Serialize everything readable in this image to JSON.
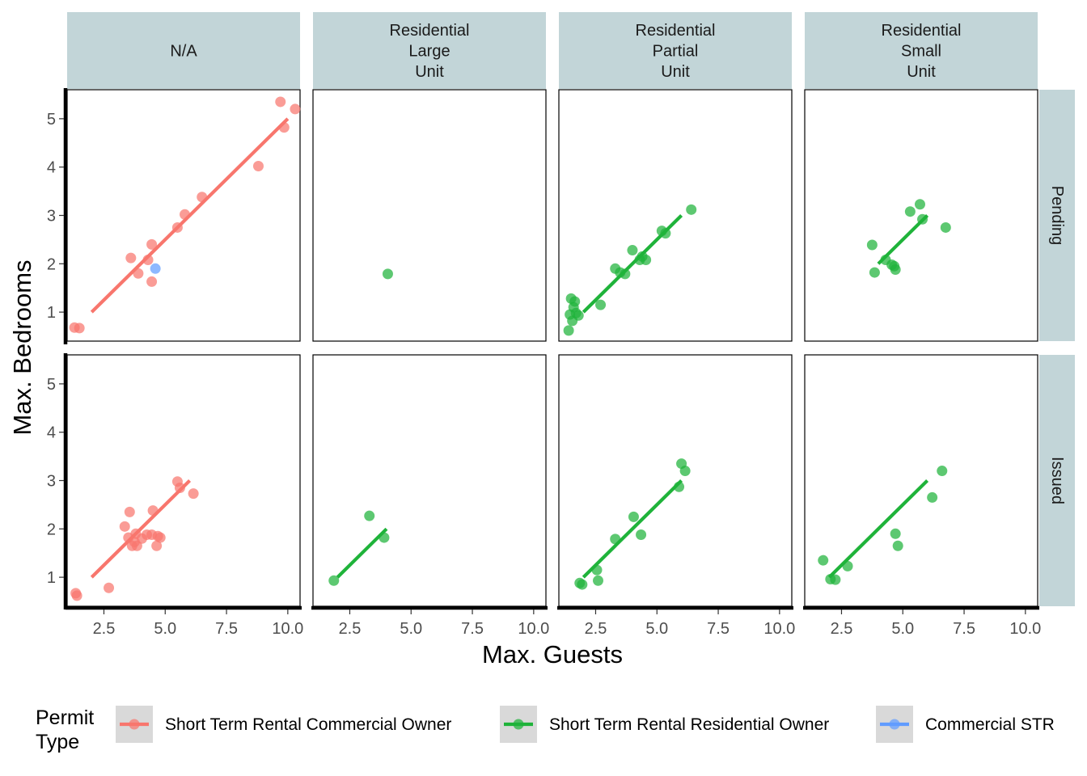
{
  "chart_data": {
    "type": "scatter",
    "xlabel": "Max. Guests",
    "ylabel": "Max. Bedrooms",
    "xlim": [
      1,
      10.5
    ],
    "ylim": [
      0.4,
      5.6
    ],
    "x_ticks": [
      2.5,
      5.0,
      7.5,
      10.0
    ],
    "x_tick_labels": [
      "2.5",
      "5.0",
      "7.5",
      "10.0"
    ],
    "y_ticks": [
      1,
      2,
      3,
      4,
      5
    ],
    "y_tick_labels": [
      "1",
      "2",
      "3",
      "4",
      "5"
    ],
    "columns": [
      {
        "lines": [
          "N/A"
        ]
      },
      {
        "lines": [
          "Residential",
          "Large",
          "Unit"
        ]
      },
      {
        "lines": [
          "Residential",
          "Partial",
          "Unit"
        ]
      },
      {
        "lines": [
          "Residential",
          "Small",
          "Unit"
        ]
      }
    ],
    "rows": [
      "Pending",
      "Issued"
    ],
    "legend": {
      "title_lines": [
        "Permit",
        "Type"
      ],
      "position": "bottom",
      "entries": [
        {
          "label": "Short Term Rental Commercial Owner",
          "color": "#F8766D"
        },
        {
          "label": "Short Term Rental Residential Owner",
          "color": "#1FB33A"
        },
        {
          "label": "Commercial STR",
          "color": "#619CFF"
        }
      ]
    },
    "panels": [
      {
        "row": 0,
        "col": 0,
        "points": [
          {
            "x": 1.3,
            "y": 0.68,
            "g": 0
          },
          {
            "x": 1.5,
            "y": 0.67,
            "g": 0
          },
          {
            "x": 3.6,
            "y": 2.12,
            "g": 0
          },
          {
            "x": 3.9,
            "y": 1.8,
            "g": 0
          },
          {
            "x": 4.3,
            "y": 2.08,
            "g": 0
          },
          {
            "x": 4.45,
            "y": 2.4,
            "g": 0
          },
          {
            "x": 4.45,
            "y": 1.63,
            "g": 0
          },
          {
            "x": 4.6,
            "y": 1.9,
            "g": 2
          },
          {
            "x": 5.5,
            "y": 2.75,
            "g": 0
          },
          {
            "x": 5.8,
            "y": 3.02,
            "g": 0
          },
          {
            "x": 6.5,
            "y": 3.38,
            "g": 0
          },
          {
            "x": 8.8,
            "y": 4.02,
            "g": 0
          },
          {
            "x": 9.7,
            "y": 5.35,
            "g": 0
          },
          {
            "x": 9.85,
            "y": 4.82,
            "g": 0
          },
          {
            "x": 10.3,
            "y": 5.2,
            "g": 0
          }
        ],
        "fits": [
          {
            "g": 0,
            "x1": 2.0,
            "y1": 1.0,
            "x2": 10.0,
            "y2": 5.0
          }
        ]
      },
      {
        "row": 0,
        "col": 1,
        "points": [
          {
            "x": 4.05,
            "y": 1.79,
            "g": 1
          }
        ],
        "fits": []
      },
      {
        "row": 0,
        "col": 2,
        "points": [
          {
            "x": 1.4,
            "y": 0.62,
            "g": 1
          },
          {
            "x": 1.45,
            "y": 0.95,
            "g": 1
          },
          {
            "x": 1.5,
            "y": 1.28,
            "g": 1
          },
          {
            "x": 1.55,
            "y": 0.82,
            "g": 1
          },
          {
            "x": 1.6,
            "y": 1.1,
            "g": 1
          },
          {
            "x": 1.65,
            "y": 1.22,
            "g": 1
          },
          {
            "x": 1.7,
            "y": 0.98,
            "g": 1
          },
          {
            "x": 1.8,
            "y": 0.93,
            "g": 1
          },
          {
            "x": 2.7,
            "y": 1.15,
            "g": 1
          },
          {
            "x": 3.3,
            "y": 1.9,
            "g": 1
          },
          {
            "x": 3.5,
            "y": 1.82,
            "g": 1
          },
          {
            "x": 3.7,
            "y": 1.79,
            "g": 1
          },
          {
            "x": 4.0,
            "y": 2.28,
            "g": 1
          },
          {
            "x": 4.3,
            "y": 2.08,
            "g": 1
          },
          {
            "x": 4.4,
            "y": 2.15,
            "g": 1
          },
          {
            "x": 4.55,
            "y": 2.08,
            "g": 1
          },
          {
            "x": 5.2,
            "y": 2.68,
            "g": 1
          },
          {
            "x": 5.35,
            "y": 2.63,
            "g": 1
          },
          {
            "x": 6.4,
            "y": 3.12,
            "g": 1
          }
        ],
        "fits": [
          {
            "g": 1,
            "x1": 2.0,
            "y1": 1.0,
            "x2": 6.0,
            "y2": 3.0
          }
        ]
      },
      {
        "row": 0,
        "col": 3,
        "points": [
          {
            "x": 3.75,
            "y": 2.39,
            "g": 1
          },
          {
            "x": 3.85,
            "y": 1.82,
            "g": 1
          },
          {
            "x": 4.3,
            "y": 2.08,
            "g": 1
          },
          {
            "x": 4.55,
            "y": 1.98,
            "g": 1
          },
          {
            "x": 4.65,
            "y": 1.95,
            "g": 1
          },
          {
            "x": 4.7,
            "y": 1.88,
            "g": 1
          },
          {
            "x": 5.3,
            "y": 3.08,
            "g": 1
          },
          {
            "x": 5.7,
            "y": 3.23,
            "g": 1
          },
          {
            "x": 5.8,
            "y": 2.92,
            "g": 1
          },
          {
            "x": 6.75,
            "y": 2.75,
            "g": 1
          }
        ],
        "fits": [
          {
            "g": 1,
            "x1": 4.0,
            "y1": 2.0,
            "x2": 6.0,
            "y2": 3.0
          }
        ]
      },
      {
        "row": 1,
        "col": 0,
        "points": [
          {
            "x": 1.35,
            "y": 0.67,
            "g": 0
          },
          {
            "x": 1.4,
            "y": 0.62,
            "g": 0
          },
          {
            "x": 2.7,
            "y": 0.78,
            "g": 0
          },
          {
            "x": 3.35,
            "y": 2.05,
            "g": 0
          },
          {
            "x": 3.5,
            "y": 1.82,
            "g": 0
          },
          {
            "x": 3.55,
            "y": 2.35,
            "g": 0
          },
          {
            "x": 3.65,
            "y": 1.65,
            "g": 0
          },
          {
            "x": 3.75,
            "y": 1.73,
            "g": 0
          },
          {
            "x": 3.8,
            "y": 1.9,
            "g": 0
          },
          {
            "x": 3.85,
            "y": 1.65,
            "g": 0
          },
          {
            "x": 4.05,
            "y": 1.8,
            "g": 0
          },
          {
            "x": 4.25,
            "y": 1.88,
            "g": 0
          },
          {
            "x": 4.45,
            "y": 1.88,
            "g": 0
          },
          {
            "x": 4.5,
            "y": 2.38,
            "g": 0
          },
          {
            "x": 4.65,
            "y": 1.65,
            "g": 0
          },
          {
            "x": 4.7,
            "y": 1.85,
            "g": 0
          },
          {
            "x": 4.8,
            "y": 1.82,
            "g": 0
          },
          {
            "x": 5.5,
            "y": 2.98,
            "g": 0
          },
          {
            "x": 5.6,
            "y": 2.85,
            "g": 0
          },
          {
            "x": 6.15,
            "y": 2.73,
            "g": 0
          }
        ],
        "fits": [
          {
            "g": 0,
            "x1": 2.0,
            "y1": 1.0,
            "x2": 6.0,
            "y2": 3.0
          }
        ]
      },
      {
        "row": 1,
        "col": 1,
        "points": [
          {
            "x": 1.85,
            "y": 0.93,
            "g": 1
          },
          {
            "x": 3.3,
            "y": 2.27,
            "g": 1
          },
          {
            "x": 3.9,
            "y": 1.82,
            "g": 1
          }
        ],
        "fits": [
          {
            "g": 1,
            "x1": 2.0,
            "y1": 1.0,
            "x2": 4.0,
            "y2": 2.0
          }
        ]
      },
      {
        "row": 1,
        "col": 2,
        "points": [
          {
            "x": 1.85,
            "y": 0.88,
            "g": 1
          },
          {
            "x": 1.95,
            "y": 0.85,
            "g": 1
          },
          {
            "x": 2.55,
            "y": 1.15,
            "g": 1
          },
          {
            "x": 2.6,
            "y": 0.93,
            "g": 1
          },
          {
            "x": 3.3,
            "y": 1.79,
            "g": 1
          },
          {
            "x": 4.05,
            "y": 2.25,
            "g": 1
          },
          {
            "x": 4.35,
            "y": 1.88,
            "g": 1
          },
          {
            "x": 5.9,
            "y": 2.87,
            "g": 1
          },
          {
            "x": 6.0,
            "y": 3.35,
            "g": 1
          },
          {
            "x": 6.15,
            "y": 3.2,
            "g": 1
          }
        ],
        "fits": [
          {
            "g": 1,
            "x1": 2.0,
            "y1": 1.0,
            "x2": 6.0,
            "y2": 3.0
          }
        ]
      },
      {
        "row": 1,
        "col": 3,
        "points": [
          {
            "x": 1.75,
            "y": 1.35,
            "g": 1
          },
          {
            "x": 2.05,
            "y": 0.96,
            "g": 1
          },
          {
            "x": 2.25,
            "y": 0.95,
            "g": 1
          },
          {
            "x": 2.75,
            "y": 1.23,
            "g": 1
          },
          {
            "x": 4.7,
            "y": 1.9,
            "g": 1
          },
          {
            "x": 4.8,
            "y": 1.65,
            "g": 1
          },
          {
            "x": 6.2,
            "y": 2.65,
            "g": 1
          },
          {
            "x": 6.6,
            "y": 3.2,
            "g": 1
          }
        ],
        "fits": [
          {
            "g": 1,
            "x1": 2.0,
            "y1": 1.0,
            "x2": 6.0,
            "y2": 3.0
          }
        ]
      }
    ]
  }
}
